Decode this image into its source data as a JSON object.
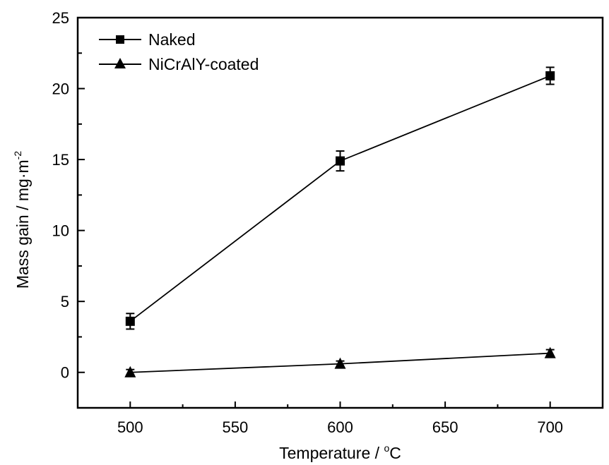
{
  "chart_data": {
    "type": "line",
    "title": "",
    "xlabel": "Temperature / °C",
    "xlabel_main": "Temperature / ",
    "xlabel_sup": "o",
    "xlabel_unit": "C",
    "ylabel": "Mass gain / mg·m⁻²",
    "ylabel_main": "Mass gain / mg·m",
    "ylabel_sup": "-2",
    "xlim": [
      475,
      725
    ],
    "ylim": [
      -2.5,
      25
    ],
    "x_ticks": [
      500,
      550,
      600,
      650,
      700
    ],
    "x_minor_ticks": [
      525,
      575,
      625,
      675
    ],
    "y_ticks": [
      0,
      5,
      10,
      15,
      20,
      25
    ],
    "y_minor_ticks": [
      2.5,
      7.5,
      12.5,
      17.5,
      22.5
    ],
    "x_tick_labels": [
      "500",
      "550",
      "600",
      "650",
      "700"
    ],
    "y_tick_labels": [
      "0",
      "5",
      "10",
      "15",
      "20",
      "25"
    ],
    "grid": false,
    "legend_position": "top-left",
    "x": [
      500,
      600,
      700
    ],
    "series": [
      {
        "name": "Naked",
        "marker": "square",
        "color": "#000000",
        "values": [
          3.6,
          14.9,
          20.9
        ],
        "errors": [
          0.55,
          0.7,
          0.6
        ]
      },
      {
        "name": "NiCrAlY-coated",
        "marker": "triangle",
        "color": "#000000",
        "values": [
          0.0,
          0.6,
          1.35
        ],
        "errors": [
          0.2,
          0.2,
          0.25
        ]
      }
    ]
  }
}
